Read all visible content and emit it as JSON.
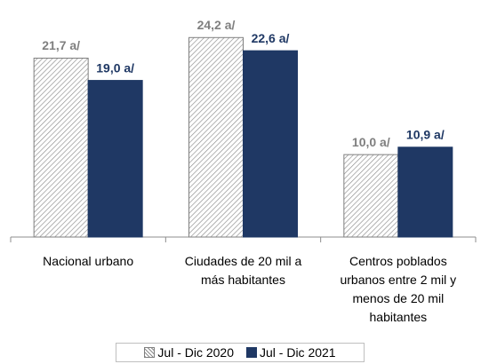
{
  "chart_data": {
    "type": "bar",
    "categories": [
      "Nacional urbano",
      "Ciudades de 20 mil a más habitantes",
      "Centros poblados urbanos entre 2 mil y menos de 20 mil habitantes"
    ],
    "series": [
      {
        "name": "Jul - Dic 2020",
        "color": "#7f7f7f",
        "pattern": "hatch",
        "values": [
          21.7,
          24.2,
          10.0
        ],
        "value_labels": [
          "21,7 a/",
          "24,2 a/",
          "10,0 a/"
        ]
      },
      {
        "name": "Jul - Dic 2021",
        "color": "#1f3864",
        "values": [
          19.0,
          22.6,
          10.9
        ],
        "value_labels": [
          "19,0 a/",
          "22,6 a/",
          "10,9 a/"
        ]
      }
    ],
    "ylim": [
      0,
      28
    ],
    "legend": "bottom"
  }
}
